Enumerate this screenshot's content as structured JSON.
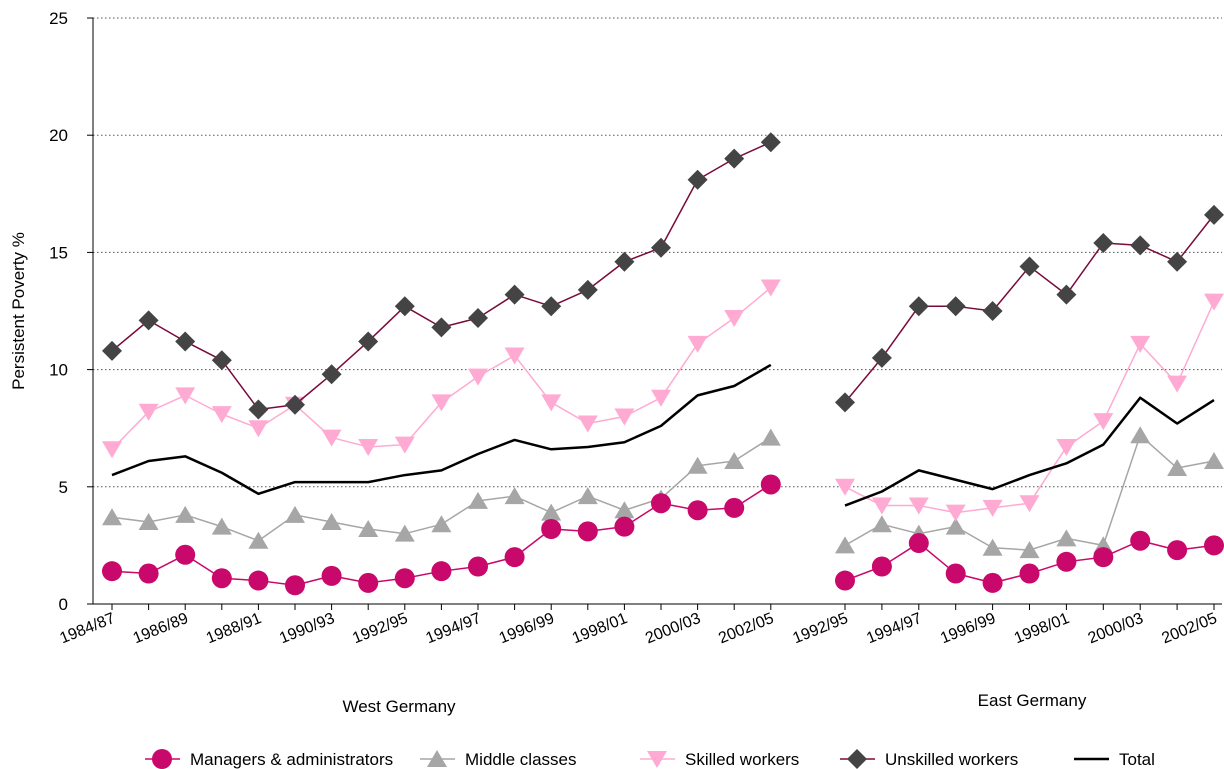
{
  "chart_data": {
    "type": "line",
    "ylabel": "Persistent Poverty %",
    "ylim": [
      0,
      25
    ],
    "yticks": [
      0,
      5,
      10,
      15,
      20,
      25
    ],
    "grid": "horizontal dotted",
    "legend_position": "bottom",
    "colors": {
      "managers": "#c8086a",
      "middle": "#a6a6a6",
      "skilled": "#ffaad2",
      "unskilled": "#444444",
      "unskilled_line": "#7a0a3c",
      "total": "#000000"
    },
    "panels": [
      {
        "label": "West Germany",
        "categories": [
          "1984/87",
          "1985/88",
          "1986/89",
          "1987/90",
          "1988/91",
          "1989/92",
          "1990/93",
          "1991/94",
          "1992/95",
          "1993/96",
          "1994/97",
          "1995/98",
          "1996/99",
          "1997/00",
          "1998/01",
          "1999/02",
          "2000/03",
          "2001/04",
          "2002/05"
        ],
        "tick_labels": [
          "1984/87",
          "",
          "1986/89",
          "",
          "1988/91",
          "",
          "1990/93",
          "",
          "1992/95",
          "",
          "1994/97",
          "",
          "1996/99",
          "",
          "1998/01",
          "",
          "2000/03",
          "",
          "2002/05"
        ],
        "series": [
          {
            "key": "managers",
            "name": "Managers & administrators",
            "values": [
              1.4,
              1.3,
              2.1,
              1.1,
              1.0,
              0.8,
              1.2,
              0.9,
              1.1,
              1.4,
              1.6,
              2.0,
              3.2,
              3.1,
              3.3,
              4.3,
              4.0,
              4.1,
              5.1
            ]
          },
          {
            "key": "middle",
            "name": "Middle classes",
            "values": [
              3.7,
              3.5,
              3.8,
              3.3,
              2.7,
              3.8,
              3.5,
              3.2,
              3.0,
              3.4,
              4.4,
              4.6,
              3.9,
              4.6,
              4.0,
              4.5,
              5.9,
              6.1,
              7.1
            ]
          },
          {
            "key": "skilled",
            "name": "Skilled workers",
            "values": [
              6.6,
              8.2,
              8.9,
              8.1,
              7.5,
              8.5,
              7.1,
              6.7,
              6.8,
              8.6,
              9.7,
              10.6,
              8.6,
              7.7,
              8.0,
              8.8,
              11.1,
              12.2,
              13.5
            ]
          },
          {
            "key": "unskilled",
            "name": "Unskilled workers",
            "values": [
              10.8,
              12.1,
              11.2,
              10.4,
              8.3,
              8.5,
              9.8,
              11.2,
              12.7,
              11.8,
              12.2,
              13.2,
              12.7,
              13.4,
              14.6,
              15.2,
              18.1,
              19.0,
              19.7
            ]
          },
          {
            "key": "total",
            "name": "Total",
            "values": [
              5.5,
              6.1,
              6.3,
              5.6,
              4.7,
              5.2,
              5.2,
              5.2,
              5.5,
              5.7,
              6.4,
              7.0,
              6.6,
              6.7,
              6.9,
              7.6,
              8.9,
              9.3,
              10.2
            ]
          }
        ]
      },
      {
        "label": "East Germany",
        "categories": [
          "1992/95",
          "1993/96",
          "1994/97",
          "1995/98",
          "1996/99",
          "1997/00",
          "1998/01",
          "1999/02",
          "2000/03",
          "2001/04",
          "2002/05"
        ],
        "tick_labels": [
          "1992/95",
          "",
          "1994/97",
          "",
          "1996/99",
          "",
          "1998/01",
          "",
          "2000/03",
          "",
          "2002/05"
        ],
        "series": [
          {
            "key": "managers",
            "name": "Managers & administrators",
            "values": [
              1.0,
              1.6,
              2.6,
              1.3,
              0.9,
              1.3,
              1.8,
              2.0,
              2.7,
              2.3,
              2.5
            ]
          },
          {
            "key": "middle",
            "name": "Middle classes",
            "values": [
              2.5,
              3.4,
              3.0,
              3.3,
              2.4,
              2.3,
              2.8,
              2.5,
              7.2,
              5.8,
              6.1
            ]
          },
          {
            "key": "skilled",
            "name": "Skilled workers",
            "values": [
              5.0,
              4.2,
              4.2,
              3.9,
              4.1,
              4.3,
              6.7,
              7.8,
              11.1,
              9.4,
              12.9
            ]
          },
          {
            "key": "unskilled",
            "name": "Unskilled workers",
            "values": [
              8.6,
              10.5,
              12.7,
              12.7,
              12.5,
              14.4,
              13.2,
              15.4,
              15.3,
              14.6,
              16.6
            ]
          },
          {
            "key": "total",
            "name": "Total",
            "values": [
              4.2,
              4.8,
              5.7,
              5.3,
              4.9,
              5.5,
              6.0,
              6.8,
              8.8,
              7.7,
              8.7
            ]
          }
        ]
      }
    ],
    "legend": [
      {
        "key": "managers",
        "label": "Managers & administrators"
      },
      {
        "key": "middle",
        "label": "Middle classes"
      },
      {
        "key": "skilled",
        "label": "Skilled workers"
      },
      {
        "key": "unskilled",
        "label": "Unskilled workers"
      },
      {
        "key": "total",
        "label": "Total"
      }
    ]
  }
}
